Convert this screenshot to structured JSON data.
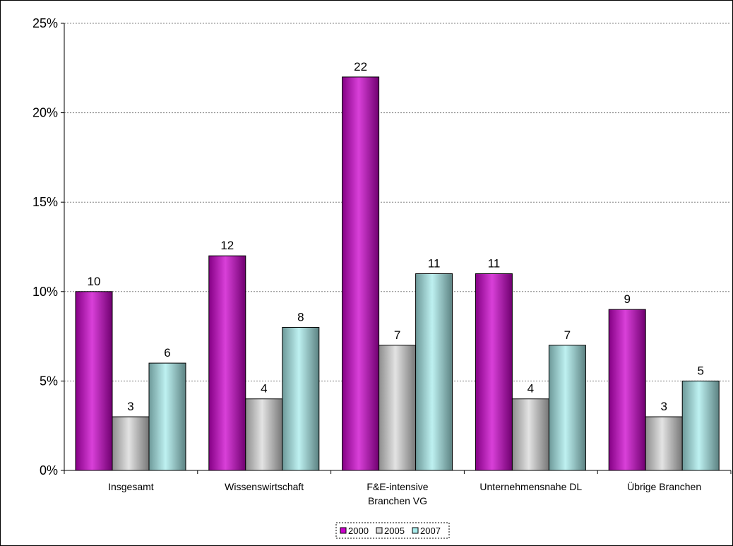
{
  "chart_data": {
    "type": "bar",
    "title": "",
    "xlabel": "",
    "ylabel": "",
    "ylim": [
      0,
      25
    ],
    "y_ticks": [
      "0%",
      "5%",
      "10%",
      "15%",
      "20%",
      "25%"
    ],
    "y_tick_values": [
      0,
      5,
      10,
      15,
      20,
      25
    ],
    "grid": true,
    "legend_placement": "bottom-center",
    "categories": [
      [
        "Insgesamt"
      ],
      [
        "Wissenswirtschaft"
      ],
      [
        "F&E-intensive",
        "Branchen VG"
      ],
      [
        "Unternehmensnahe DL"
      ],
      [
        "Übrige Branchen"
      ]
    ],
    "series": [
      {
        "name": "2000",
        "color": "#cc00cc",
        "values": [
          10,
          12,
          22,
          11,
          9
        ]
      },
      {
        "name": "2005",
        "color": "#d9d9d9",
        "values": [
          3,
          4,
          7,
          4,
          3
        ]
      },
      {
        "name": "2007",
        "color": "#a8ecec",
        "values": [
          6,
          8,
          11,
          7,
          5
        ]
      }
    ]
  }
}
